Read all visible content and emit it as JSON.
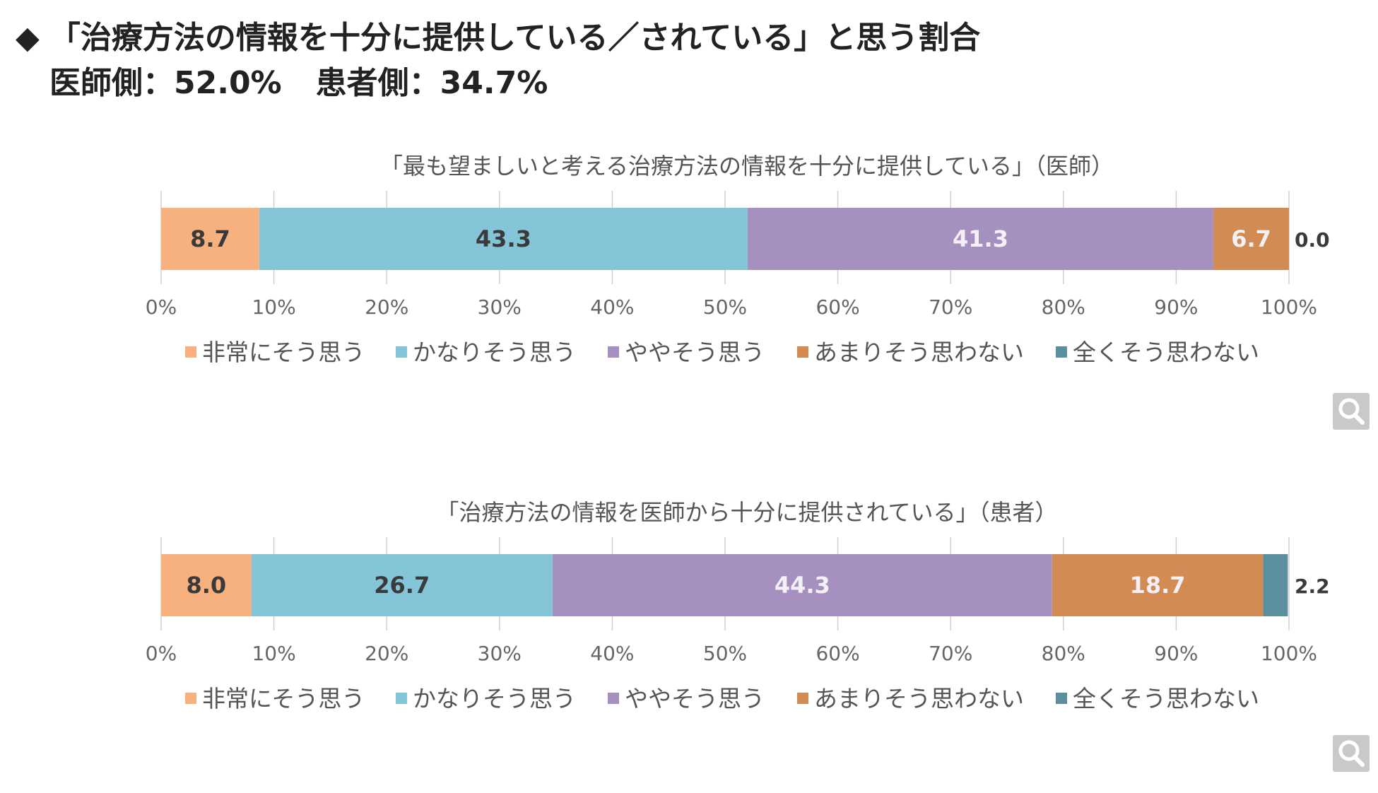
{
  "header": {
    "diamond": "◆",
    "title": "「治療方法の情報を十分に提供している／されている」と思う割合",
    "doctor_stat": "医師側：52.0%",
    "patient_stat": "患者側：34.7%"
  },
  "colors": {
    "series": [
      "#f7b17f",
      "#84c5d7",
      "#a690c0",
      "#d28b52",
      "#5b8f9e"
    ],
    "grid": "#d0d0d0",
    "text": "#555555"
  },
  "icons": {
    "zoom": "magnifier-icon"
  },
  "chart_data": [
    {
      "type": "bar",
      "orientation": "horizontal-stacked",
      "title": "「最も望ましいと考える治療方法の情報を十分に提供している」（医師）",
      "xlim": [
        0,
        100
      ],
      "x_ticks": [
        "0%",
        "10%",
        "20%",
        "30%",
        "40%",
        "50%",
        "60%",
        "70%",
        "80%",
        "90%",
        "100%"
      ],
      "grid": true,
      "legend_position": "bottom",
      "series": [
        {
          "name": "非常にそう思う",
          "values": [
            8.7
          ],
          "label": "8.7"
        },
        {
          "name": "かなりそう思う",
          "values": [
            43.3
          ],
          "label": "43.3"
        },
        {
          "name": "ややそう思う",
          "values": [
            41.3
          ],
          "label": "41.3"
        },
        {
          "name": "あまりそう思わない",
          "values": [
            6.7
          ],
          "label": "6.7"
        },
        {
          "name": "全くそう思わない",
          "values": [
            0.0
          ],
          "label": "0.0"
        }
      ]
    },
    {
      "type": "bar",
      "orientation": "horizontal-stacked",
      "title": "「治療方法の情報を医師から十分に提供されている」（患者）",
      "xlim": [
        0,
        100
      ],
      "x_ticks": [
        "0%",
        "10%",
        "20%",
        "30%",
        "40%",
        "50%",
        "60%",
        "70%",
        "80%",
        "90%",
        "100%"
      ],
      "grid": true,
      "legend_position": "bottom",
      "series": [
        {
          "name": "非常にそう思う",
          "values": [
            8.0
          ],
          "label": "8.0"
        },
        {
          "name": "かなりそう思う",
          "values": [
            26.7
          ],
          "label": "26.7"
        },
        {
          "name": "ややそう思う",
          "values": [
            44.3
          ],
          "label": "44.3"
        },
        {
          "name": "あまりそう思わない",
          "values": [
            18.7
          ],
          "label": "18.7"
        },
        {
          "name": "全くそう思わない",
          "values": [
            2.2
          ],
          "label": "2.2"
        }
      ]
    }
  ]
}
